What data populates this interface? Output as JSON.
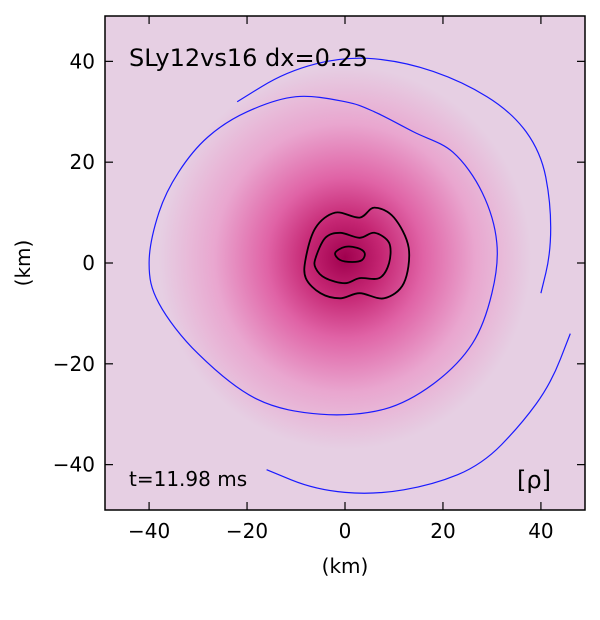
{
  "chart_data": {
    "type": "heatmap",
    "title": "SLy12vs16 dx=0.25",
    "time_label": "t=11.98 ms",
    "colorbar_symbol": "[ρ]",
    "xlabel": "(km)",
    "ylabel": "(km)",
    "xlim": [
      -49,
      49
    ],
    "ylim": [
      -49,
      49
    ],
    "xticks": [
      -40,
      -20,
      0,
      20,
      40
    ],
    "yticks": [
      -40,
      -20,
      0,
      20,
      40
    ],
    "xtick_labels": [
      "−40",
      "−20",
      "0",
      "20",
      "40"
    ],
    "ytick_labels": [
      "−40",
      "−20",
      "0",
      "20",
      "40"
    ],
    "grid": false,
    "colors": {
      "background": "#e6cfe3",
      "disk": "#e27bb6",
      "core": "#b0105c",
      "outer_contour": "#1a1aff",
      "inner_contour": "#000000"
    },
    "contours": {
      "outer": [
        {
          "points": [
            [
              -40,
              0
            ],
            [
              -38,
              -8
            ],
            [
              -30,
              -18
            ],
            [
              -18,
              -27
            ],
            [
              -5,
              -30
            ],
            [
              8,
              -29
            ],
            [
              18,
              -24
            ],
            [
              26,
              -16
            ],
            [
              30,
              -6
            ],
            [
              31,
              4
            ],
            [
              28,
              14
            ],
            [
              22,
              22
            ],
            [
              14,
              26
            ],
            [
              6,
              30
            ],
            [
              0,
              32
            ],
            [
              -10,
              33
            ],
            [
              -20,
              30
            ],
            [
              -28,
              25
            ],
            [
              -34,
              18
            ],
            [
              -38,
              10
            ]
          ]
        },
        {
          "points": [
            [
              -22,
              32
            ],
            [
              -12,
              38
            ],
            [
              0,
              41
            ],
            [
              12,
              40
            ],
            [
              24,
              36
            ],
            [
              34,
              30
            ],
            [
              40,
              22
            ],
            [
              42,
              12
            ],
            [
              42,
              2
            ],
            [
              40,
              -6
            ]
          ]
        },
        {
          "points": [
            [
              46,
              -14
            ],
            [
              42,
              -24
            ],
            [
              36,
              -32
            ],
            [
              28,
              -40
            ],
            [
              18,
              -44
            ],
            [
              6,
              -46
            ],
            [
              -6,
              -45
            ],
            [
              -16,
              -41
            ]
          ]
        }
      ],
      "inner": [
        {
          "points": [
            [
              -8,
              1
            ],
            [
              -6,
              7
            ],
            [
              -2,
              10
            ],
            [
              3,
              9
            ],
            [
              6,
              11
            ],
            [
              10,
              9
            ],
            [
              13,
              3
            ],
            [
              12,
              -4
            ],
            [
              8,
              -7
            ],
            [
              3,
              -6
            ],
            [
              -1,
              -7
            ],
            [
              -5,
              -6
            ],
            [
              -8,
              -3
            ]
          ]
        },
        {
          "points": [
            [
              -6,
              1
            ],
            [
              -4,
              5
            ],
            [
              -1,
              6
            ],
            [
              3,
              5
            ],
            [
              6,
              6
            ],
            [
              9,
              4
            ],
            [
              9,
              0
            ],
            [
              7,
              -3
            ],
            [
              3,
              -3
            ],
            [
              0,
              -4
            ],
            [
              -4,
              -3
            ],
            [
              -6,
              -1
            ]
          ]
        },
        {
          "points": [
            [
              -2,
              2
            ],
            [
              0,
              3.2
            ],
            [
              2.5,
              3
            ],
            [
              4,
              2
            ],
            [
              3.5,
              0.6
            ],
            [
              1.5,
              0.2
            ],
            [
              -1,
              0.6
            ]
          ]
        }
      ]
    }
  }
}
